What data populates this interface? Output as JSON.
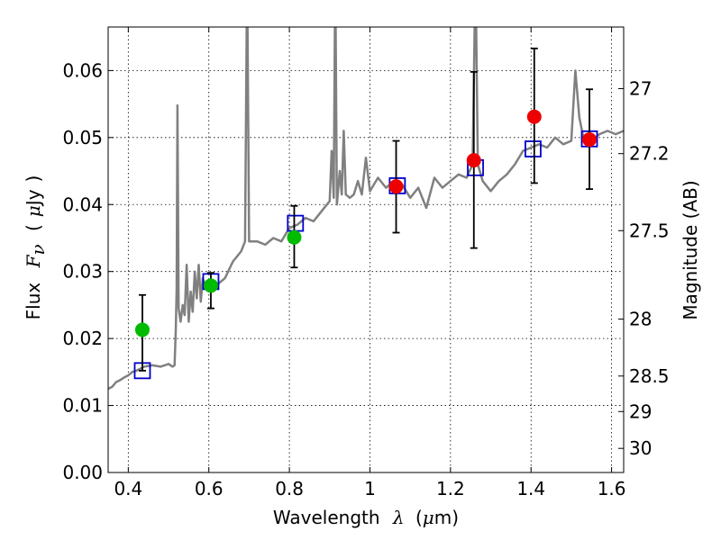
{
  "chart_data": {
    "type": "scatter",
    "xlabel_text": "Wavelength",
    "xlabel_symbol": "λ",
    "xlabel_unit_open": "(",
    "xlabel_unit_mu": "μ",
    "xlabel_unit_rest": "m)",
    "ylabel_text": "Flux",
    "ylabel_symbol": "F",
    "ylabel_sub": "ν",
    "ylabel_unit_open": "(",
    "ylabel_unit_mu": "μ",
    "ylabel_unit_rest": "Jy",
    "ylabel_unit_close": ")",
    "ylabel_right": "Magnitude (AB)",
    "xlim": [
      0.35,
      1.63
    ],
    "ylim": [
      0.0,
      0.0665
    ],
    "grid": true,
    "x_ticks": [
      0.4,
      0.6,
      0.8,
      1.0,
      1.2,
      1.4,
      1.6
    ],
    "x_tick_labels": [
      "0.4",
      "0.6",
      "0.8",
      "1",
      "1.2",
      "1.4",
      "1.6"
    ],
    "y_ticks": [
      0.0,
      0.01,
      0.02,
      0.03,
      0.04,
      0.05,
      0.06
    ],
    "y_tick_labels": [
      "0.00",
      "0.01",
      "0.02",
      "0.03",
      "0.04",
      "0.05",
      "0.06"
    ],
    "right_ticks": [
      {
        "label": "27",
        "flux": 0.0573
      },
      {
        "label": "27.2",
        "flux": 0.0476
      },
      {
        "label": "27.5",
        "flux": 0.0361
      },
      {
        "label": "28",
        "flux": 0.0229
      },
      {
        "label": "28.5",
        "flux": 0.0144
      },
      {
        "label": "29",
        "flux": 0.0091
      },
      {
        "label": "30",
        "flux": 0.0036
      }
    ],
    "colors": {
      "sed": "#808080",
      "model_box": "#0000cc",
      "green": "#00bb00",
      "red": "#ee0000",
      "errorbar": "#000000"
    },
    "sed_curve": [
      [
        0.35,
        0.0125
      ],
      [
        0.36,
        0.0128
      ],
      [
        0.37,
        0.0135
      ],
      [
        0.38,
        0.0138
      ],
      [
        0.39,
        0.0142
      ],
      [
        0.4,
        0.0145
      ],
      [
        0.41,
        0.015
      ],
      [
        0.42,
        0.0152
      ],
      [
        0.43,
        0.0155
      ],
      [
        0.44,
        0.0158
      ],
      [
        0.46,
        0.016
      ],
      [
        0.48,
        0.0158
      ],
      [
        0.5,
        0.0162
      ],
      [
        0.51,
        0.0158
      ],
      [
        0.515,
        0.016
      ],
      [
        0.518,
        0.0215
      ],
      [
        0.52,
        0.0275
      ],
      [
        0.522,
        0.0548
      ],
      [
        0.525,
        0.0245
      ],
      [
        0.53,
        0.0225
      ],
      [
        0.535,
        0.025
      ],
      [
        0.54,
        0.0235
      ],
      [
        0.545,
        0.031
      ],
      [
        0.55,
        0.0225
      ],
      [
        0.555,
        0.027
      ],
      [
        0.56,
        0.024
      ],
      [
        0.565,
        0.03
      ],
      [
        0.57,
        0.026
      ],
      [
        0.575,
        0.031
      ],
      [
        0.58,
        0.0255
      ],
      [
        0.585,
        0.029
      ],
      [
        0.59,
        0.028
      ],
      [
        0.6,
        0.0282
      ],
      [
        0.62,
        0.028
      ],
      [
        0.64,
        0.029
      ],
      [
        0.66,
        0.0315
      ],
      [
        0.68,
        0.033
      ],
      [
        0.69,
        0.0345
      ],
      [
        0.695,
        0.075
      ],
      [
        0.7,
        0.0345
      ],
      [
        0.72,
        0.0345
      ],
      [
        0.74,
        0.034
      ],
      [
        0.76,
        0.035
      ],
      [
        0.78,
        0.0345
      ],
      [
        0.8,
        0.0365
      ],
      [
        0.82,
        0.037
      ],
      [
        0.84,
        0.038
      ],
      [
        0.86,
        0.0375
      ],
      [
        0.88,
        0.039
      ],
      [
        0.9,
        0.0405
      ],
      [
        0.905,
        0.048
      ],
      [
        0.91,
        0.041
      ],
      [
        0.914,
        0.075
      ],
      [
        0.918,
        0.04
      ],
      [
        0.925,
        0.045
      ],
      [
        0.93,
        0.0415
      ],
      [
        0.935,
        0.051
      ],
      [
        0.94,
        0.0415
      ],
      [
        0.95,
        0.041
      ],
      [
        0.96,
        0.0415
      ],
      [
        0.97,
        0.0435
      ],
      [
        0.98,
        0.0415
      ],
      [
        0.99,
        0.047
      ],
      [
        1.0,
        0.042
      ],
      [
        1.02,
        0.044
      ],
      [
        1.04,
        0.0425
      ],
      [
        1.06,
        0.0435
      ],
      [
        1.08,
        0.043
      ],
      [
        1.1,
        0.041
      ],
      [
        1.12,
        0.0425
      ],
      [
        1.14,
        0.0395
      ],
      [
        1.16,
        0.044
      ],
      [
        1.18,
        0.0425
      ],
      [
        1.2,
        0.0435
      ],
      [
        1.22,
        0.0445
      ],
      [
        1.24,
        0.044
      ],
      [
        1.255,
        0.046
      ],
      [
        1.262,
        0.075
      ],
      [
        1.268,
        0.046
      ],
      [
        1.28,
        0.0435
      ],
      [
        1.3,
        0.042
      ],
      [
        1.32,
        0.0435
      ],
      [
        1.34,
        0.0445
      ],
      [
        1.36,
        0.046
      ],
      [
        1.38,
        0.048
      ],
      [
        1.4,
        0.0485
      ],
      [
        1.42,
        0.049
      ],
      [
        1.44,
        0.0485
      ],
      [
        1.46,
        0.05
      ],
      [
        1.48,
        0.049
      ],
      [
        1.5,
        0.0495
      ],
      [
        1.51,
        0.06
      ],
      [
        1.52,
        0.053
      ],
      [
        1.53,
        0.05
      ],
      [
        1.55,
        0.0495
      ],
      [
        1.57,
        0.0505
      ],
      [
        1.59,
        0.051
      ],
      [
        1.61,
        0.0505
      ],
      [
        1.63,
        0.051
      ]
    ],
    "model_boxes": [
      {
        "x": 0.435,
        "y": 0.0152
      },
      {
        "x": 0.605,
        "y": 0.0285
      },
      {
        "x": 0.815,
        "y": 0.0372
      },
      {
        "x": 1.068,
        "y": 0.0428
      },
      {
        "x": 1.262,
        "y": 0.0455
      },
      {
        "x": 1.405,
        "y": 0.0483
      },
      {
        "x": 1.545,
        "y": 0.0498
      }
    ],
    "observed": [
      {
        "x": 0.435,
        "y": 0.0213,
        "err_low": 0.0152,
        "err_high": 0.0265,
        "color": "green"
      },
      {
        "x": 0.605,
        "y": 0.0279,
        "err_low": 0.0245,
        "err_high": 0.0298,
        "color": "green"
      },
      {
        "x": 0.812,
        "y": 0.0351,
        "err_low": 0.0306,
        "err_high": 0.0398,
        "color": "green"
      },
      {
        "x": 1.065,
        "y": 0.0427,
        "err_low": 0.0358,
        "err_high": 0.0495,
        "color": "red"
      },
      {
        "x": 1.258,
        "y": 0.0466,
        "err_low": 0.0335,
        "err_high": 0.0598,
        "color": "red"
      },
      {
        "x": 1.408,
        "y": 0.0531,
        "err_low": 0.0432,
        "err_high": 0.0633,
        "color": "red"
      },
      {
        "x": 1.545,
        "y": 0.0497,
        "err_low": 0.0423,
        "err_high": 0.0572,
        "color": "red"
      }
    ]
  }
}
